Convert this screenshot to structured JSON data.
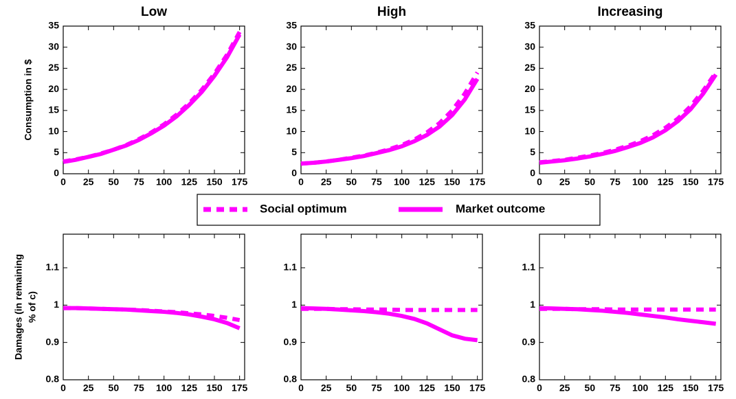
{
  "chart_data": [
    {
      "type": "line",
      "title": "Low",
      "ylabel": [
        "Consumption in $"
      ],
      "x": [
        0,
        12.5,
        25,
        37.5,
        50,
        62.5,
        75,
        87.5,
        100,
        112.5,
        125,
        137.5,
        150,
        162.5,
        175
      ],
      "xlim": [
        0,
        180
      ],
      "xticks": [
        0,
        25,
        50,
        75,
        100,
        125,
        150,
        175
      ],
      "ylim": [
        0,
        35
      ],
      "yticks": [
        0,
        5,
        10,
        15,
        20,
        25,
        30,
        35
      ],
      "series": [
        {
          "name": "Social optimum",
          "style": "dashed",
          "color": "#ff00ff",
          "values": [
            2.9,
            3.4,
            4.0,
            4.8,
            5.7,
            6.8,
            8.2,
            9.8,
            11.7,
            14.0,
            16.7,
            19.9,
            23.7,
            28.2,
            33.6
          ]
        },
        {
          "name": "Market outcome",
          "style": "solid",
          "color": "#ff00ff",
          "values": [
            2.8,
            3.3,
            4.0,
            4.7,
            5.7,
            6.7,
            8.0,
            9.6,
            11.4,
            13.6,
            16.3,
            19.4,
            23.2,
            27.6,
            33.0
          ]
        }
      ]
    },
    {
      "type": "line",
      "title": "High",
      "x": [
        0,
        12.5,
        25,
        37.5,
        50,
        62.5,
        75,
        87.5,
        100,
        112.5,
        125,
        137.5,
        150,
        162.5,
        175
      ],
      "xlim": [
        0,
        180
      ],
      "xticks": [
        0,
        25,
        50,
        75,
        100,
        125,
        150,
        175
      ],
      "ylim": [
        0,
        35
      ],
      "yticks": [
        0,
        5,
        10,
        15,
        20,
        25,
        30,
        35
      ],
      "series": [
        {
          "style": "dashed",
          "color": "#ff00ff",
          "values": [
            2.4,
            2.6,
            2.9,
            3.3,
            3.8,
            4.3,
            5.0,
            5.8,
            6.8,
            8.1,
            9.8,
            12.0,
            15.0,
            19.0,
            24.0
          ]
        },
        {
          "style": "solid",
          "color": "#ff00ff",
          "values": [
            2.4,
            2.6,
            2.9,
            3.3,
            3.7,
            4.2,
            4.9,
            5.6,
            6.5,
            7.7,
            9.2,
            11.2,
            13.9,
            17.6,
            22.5
          ]
        }
      ]
    },
    {
      "type": "line",
      "title": "Increasing",
      "x": [
        0,
        12.5,
        25,
        37.5,
        50,
        62.5,
        75,
        87.5,
        100,
        112.5,
        125,
        137.5,
        150,
        162.5,
        175
      ],
      "xlim": [
        0,
        180
      ],
      "xticks": [
        0,
        25,
        50,
        75,
        100,
        125,
        150,
        175
      ],
      "ylim": [
        0,
        35
      ],
      "yticks": [
        0,
        5,
        10,
        15,
        20,
        25,
        30,
        35
      ],
      "series": [
        {
          "style": "dashed",
          "color": "#ff00ff",
          "values": [
            2.7,
            3.0,
            3.3,
            3.8,
            4.3,
            4.9,
            5.7,
            6.6,
            7.7,
            9.1,
            10.9,
            13.1,
            16.0,
            19.7,
            24.0
          ]
        },
        {
          "style": "solid",
          "color": "#ff00ff",
          "values": [
            2.6,
            2.9,
            3.2,
            3.6,
            4.1,
            4.7,
            5.4,
            6.3,
            7.3,
            8.6,
            10.3,
            12.5,
            15.3,
            19.0,
            23.5
          ]
        }
      ]
    },
    {
      "type": "line",
      "ylabel": [
        "Damages (in remaining",
        "% of c)"
      ],
      "x": [
        0,
        12.5,
        25,
        37.5,
        50,
        62.5,
        75,
        87.5,
        100,
        112.5,
        125,
        137.5,
        150,
        162.5,
        175
      ],
      "xlim": [
        0,
        180
      ],
      "xticks": [
        0,
        25,
        50,
        75,
        100,
        125,
        150,
        175
      ],
      "ylim": [
        0.8,
        1.19
      ],
      "yticks": [
        0.8,
        0.9,
        1,
        1.1
      ],
      "series": [
        {
          "style": "dashed",
          "color": "#ff00ff",
          "values": [
            0.992,
            0.992,
            0.991,
            0.99,
            0.989,
            0.988,
            0.987,
            0.985,
            0.983,
            0.981,
            0.978,
            0.975,
            0.971,
            0.966,
            0.96
          ]
        },
        {
          "style": "solid",
          "color": "#ff00ff",
          "values": [
            0.992,
            0.992,
            0.991,
            0.99,
            0.989,
            0.988,
            0.986,
            0.984,
            0.982,
            0.979,
            0.975,
            0.969,
            0.962,
            0.952,
            0.938
          ]
        }
      ]
    },
    {
      "type": "line",
      "x": [
        0,
        12.5,
        25,
        37.5,
        50,
        62.5,
        75,
        87.5,
        100,
        112.5,
        125,
        137.5,
        150,
        162.5,
        175
      ],
      "xlim": [
        0,
        180
      ],
      "xticks": [
        0,
        25,
        50,
        75,
        100,
        125,
        150,
        175
      ],
      "ylim": [
        0.8,
        1.19
      ],
      "yticks": [
        0.8,
        0.9,
        1,
        1.1
      ],
      "series": [
        {
          "style": "dashed",
          "color": "#ff00ff",
          "values": [
            0.99,
            0.99,
            0.99,
            0.989,
            0.989,
            0.988,
            0.988,
            0.988,
            0.987,
            0.987,
            0.987,
            0.987,
            0.987,
            0.987,
            0.987
          ]
        },
        {
          "style": "solid",
          "color": "#ff00ff",
          "values": [
            0.992,
            0.991,
            0.99,
            0.988,
            0.986,
            0.984,
            0.981,
            0.977,
            0.971,
            0.963,
            0.951,
            0.935,
            0.919,
            0.91,
            0.906
          ]
        }
      ]
    },
    {
      "type": "line",
      "x": [
        0,
        12.5,
        25,
        37.5,
        50,
        62.5,
        75,
        87.5,
        100,
        112.5,
        125,
        137.5,
        150,
        162.5,
        175
      ],
      "xlim": [
        0,
        180
      ],
      "xticks": [
        0,
        25,
        50,
        75,
        100,
        125,
        150,
        175
      ],
      "ylim": [
        0.8,
        1.19
      ],
      "yticks": [
        0.8,
        0.9,
        1,
        1.1
      ],
      "series": [
        {
          "style": "dashed",
          "color": "#ff00ff",
          "values": [
            0.99,
            0.99,
            0.99,
            0.989,
            0.989,
            0.989,
            0.988,
            0.988,
            0.988,
            0.988,
            0.988,
            0.988,
            0.988,
            0.988,
            0.988
          ]
        },
        {
          "style": "solid",
          "color": "#ff00ff",
          "values": [
            0.992,
            0.991,
            0.99,
            0.989,
            0.987,
            0.985,
            0.982,
            0.979,
            0.975,
            0.971,
            0.967,
            0.962,
            0.958,
            0.954,
            0.95
          ]
        }
      ]
    }
  ]
}
